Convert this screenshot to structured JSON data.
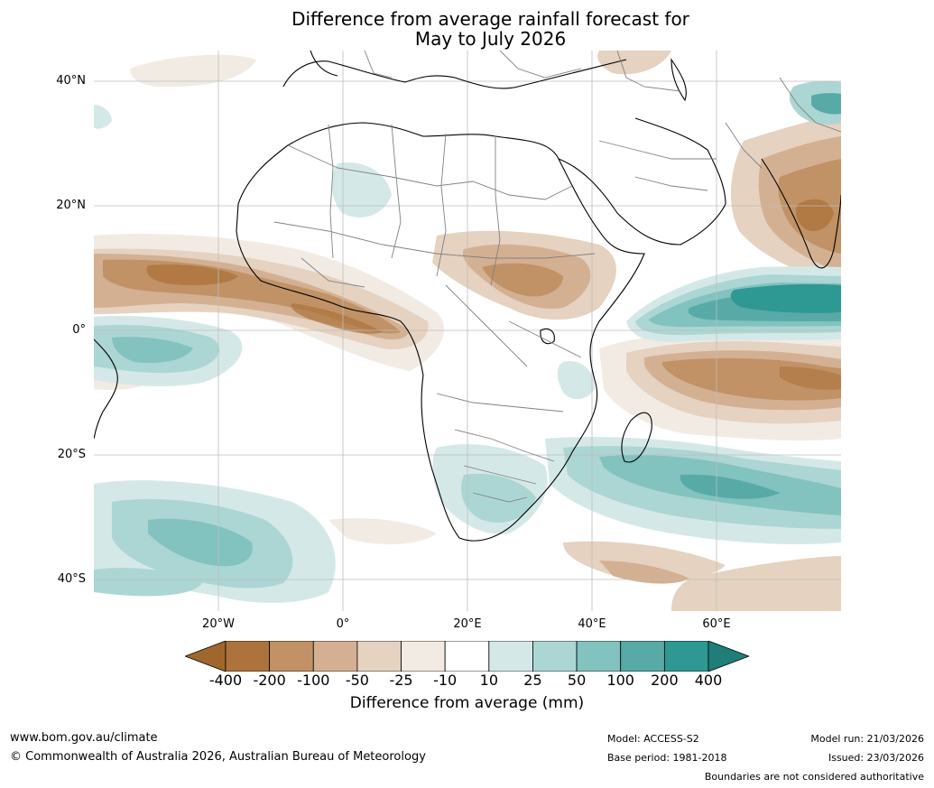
{
  "title_line1": "Difference from average rainfall forecast for",
  "title_line2": "May to July 2026",
  "latitude_labels": [
    "40°N",
    "20°N",
    "0°",
    "20°S",
    "40°S"
  ],
  "longitude_labels": [
    "20°W",
    "0°",
    "20°E",
    "40°E",
    "60°E"
  ],
  "colorbar": {
    "ticks": [
      "-400",
      "-200",
      "-100",
      "-50",
      "-25",
      "-10",
      "10",
      "25",
      "50",
      "100",
      "200",
      "400"
    ],
    "colors": [
      "#a0672c",
      "#ad733c",
      "#c09266",
      "#d4b092",
      "#e5d2c0",
      "#f2ebe4",
      "#ffffff",
      "#d4e9e7",
      "#acd6d3",
      "#82c2bf",
      "#58aaa7",
      "#2e9893",
      "#1f7e79"
    ],
    "label": "Difference from average (mm)"
  },
  "footer": {
    "website": "www.bom.gov.au/climate",
    "copyright": "© Commonwealth of Australia 2026, Australian Bureau of Meteorology",
    "model": "Model: ACCESS-S2",
    "base_period": "Base period: 1981-2018",
    "model_run": "Model run: 21/03/2026",
    "issued": "Issued: 23/03/2026",
    "disclaimer": "Boundaries are not considered authoritative"
  }
}
